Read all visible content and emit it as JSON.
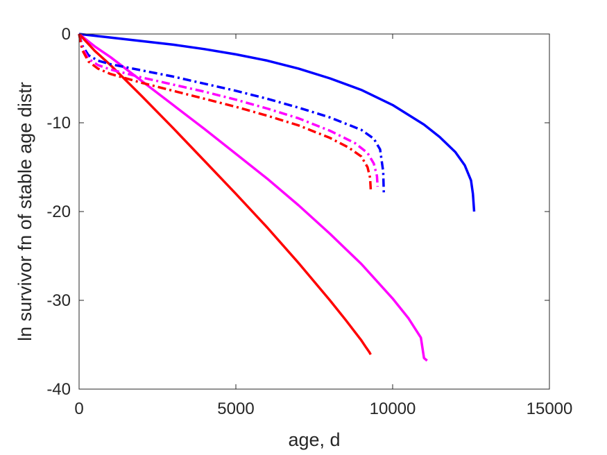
{
  "chart_data": {
    "type": "line",
    "xlabel": "age, d",
    "ylabel": "ln survivor fn of stable age distr",
    "xlim": [
      0,
      15000
    ],
    "ylim": [
      -40,
      0
    ],
    "xticks": [
      0,
      5000,
      10000,
      15000
    ],
    "yticks": [
      0,
      -10,
      -20,
      -30,
      -40
    ],
    "xtick_labels": [
      "0",
      "5000",
      "10000",
      "15000"
    ],
    "ytick_labels": [
      "0",
      "-10",
      "-20",
      "-30",
      "-40"
    ],
    "grid": false,
    "box": true,
    "series": [
      {
        "color": "#0000ff",
        "style": "solid",
        "x": [
          0,
          1000,
          2000,
          3000,
          4000,
          5000,
          6000,
          7000,
          8000,
          9000,
          10000,
          11000,
          11500,
          12000,
          12300,
          12500,
          12560,
          12600
        ],
        "y": [
          0,
          -0.4,
          -0.8,
          -1.2,
          -1.7,
          -2.3,
          -3.0,
          -3.9,
          -5.0,
          -6.3,
          -8.0,
          -10.2,
          -11.6,
          -13.3,
          -14.8,
          -16.5,
          -18.0,
          -20.0
        ]
      },
      {
        "color": "#ff00ff",
        "style": "solid",
        "x": [
          0,
          500,
          1000,
          2000,
          3000,
          4000,
          5000,
          6000,
          7000,
          8000,
          9000,
          10000,
          10500,
          10900,
          11000,
          11100
        ],
        "y": [
          0,
          -1.4,
          -2.6,
          -5.3,
          -8.0,
          -10.7,
          -13.5,
          -16.3,
          -19.3,
          -22.5,
          -25.9,
          -29.8,
          -32.0,
          -34.2,
          -36.5,
          -36.8
        ]
      },
      {
        "color": "#ff0000",
        "style": "solid",
        "x": [
          0,
          500,
          1000,
          2000,
          3000,
          4000,
          5000,
          6000,
          7000,
          8000,
          8500,
          9000,
          9150,
          9250,
          9300
        ],
        "y": [
          0,
          -1.9,
          -3.5,
          -7.0,
          -10.6,
          -14.3,
          -18.0,
          -21.8,
          -25.8,
          -30.0,
          -32.2,
          -34.5,
          -35.3,
          -35.8,
          -36.1
        ]
      },
      {
        "color": "#0000ff",
        "style": "dashdot",
        "x": [
          0,
          100,
          300,
          600,
          1000,
          2000,
          3000,
          4000,
          5000,
          6000,
          7000,
          8000,
          9000,
          9400,
          9600,
          9700,
          9720
        ],
        "y": [
          0,
          -1.3,
          -2.4,
          -3.0,
          -3.4,
          -4.1,
          -4.8,
          -5.6,
          -6.4,
          -7.3,
          -8.3,
          -9.4,
          -10.8,
          -11.8,
          -13.0,
          -15.5,
          -18.0
        ]
      },
      {
        "color": "#ff00ff",
        "style": "dashdot",
        "x": [
          0,
          100,
          300,
          600,
          1000,
          2000,
          3000,
          4000,
          5000,
          6000,
          7000,
          8000,
          8800,
          9200,
          9400,
          9500,
          9520
        ],
        "y": [
          0,
          -1.5,
          -2.8,
          -3.5,
          -4.0,
          -4.9,
          -5.7,
          -6.5,
          -7.4,
          -8.4,
          -9.5,
          -10.9,
          -12.3,
          -13.4,
          -14.6,
          -16.0,
          -17.2
        ]
      },
      {
        "color": "#ff0000",
        "style": "dashdot",
        "x": [
          0,
          100,
          300,
          600,
          1000,
          2000,
          3000,
          4000,
          5000,
          6000,
          7000,
          8000,
          8600,
          9000,
          9200,
          9280,
          9300
        ],
        "y": [
          0,
          -1.8,
          -3.1,
          -3.9,
          -4.5,
          -5.5,
          -6.4,
          -7.3,
          -8.2,
          -9.2,
          -10.3,
          -11.7,
          -12.8,
          -13.8,
          -15.0,
          -16.2,
          -17.5
        ]
      }
    ]
  }
}
